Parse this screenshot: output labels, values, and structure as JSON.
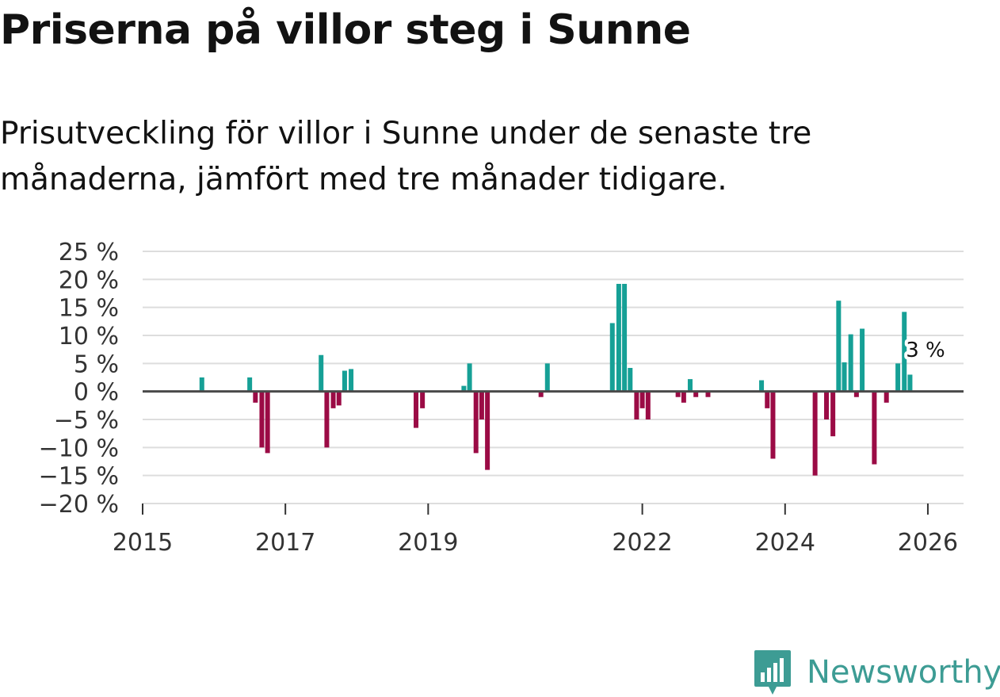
{
  "title": "Priserna på villor steg i Sunne",
  "subtitle": "Prisutveckling för villor i Sunne under de senaste tre månaderna, jämfört med tre månader tidigare.",
  "branding": {
    "name": "Newsworthy",
    "icon": "newsworthy-logo-icon",
    "color": "#3d9c94"
  },
  "colors": {
    "positive": "#16a096",
    "negative": "#9b0b45",
    "grid": "#dddddd",
    "zero_line": "#4a4a4a"
  },
  "chart_data": {
    "type": "bar",
    "title": "Priserna på villor steg i Sunne",
    "subtitle": "Prisutveckling för villor i Sunne under de senaste tre månaderna, jämfört med tre månader tidigare.",
    "xlabel": "",
    "ylabel": "",
    "ylim": [
      -20,
      25
    ],
    "xlim": [
      2015.0,
      2026.5
    ],
    "y_ticks": [
      -20,
      -15,
      -10,
      -5,
      0,
      5,
      10,
      15,
      20,
      25
    ],
    "y_tick_labels": [
      "−20 %",
      "−15 %",
      "−10 %",
      "−5 %",
      "0 %",
      "5 %",
      "10 %",
      "15 %",
      "20 %",
      "25 %"
    ],
    "x_ticks": [
      2015,
      2017,
      2019,
      2022,
      2024,
      2026
    ],
    "x_tick_labels": [
      "2015",
      "2017",
      "2019",
      "2022",
      "2024",
      "2026"
    ],
    "grid": true,
    "highlight_label": "3 %",
    "x": [
      2015.83,
      2016.5,
      2016.58,
      2016.67,
      2016.75,
      2017.5,
      2017.58,
      2017.67,
      2017.75,
      2017.83,
      2017.92,
      2018.83,
      2018.92,
      2019.5,
      2019.58,
      2019.67,
      2019.75,
      2019.83,
      2020.58,
      2020.67,
      2021.58,
      2021.67,
      2021.75,
      2021.83,
      2021.92,
      2022.0,
      2022.08,
      2022.5,
      2022.58,
      2022.67,
      2022.75,
      2022.92,
      2023.67,
      2023.75,
      2023.83,
      2024.42,
      2024.58,
      2024.67,
      2024.75,
      2024.83,
      2024.92,
      2025.0,
      2025.08,
      2025.25,
      2025.42,
      2025.58,
      2025.67,
      2025.75,
      2025.83,
      2025.92
    ],
    "values": [
      2.5,
      2.5,
      -2,
      -10,
      -11,
      6.5,
      -10,
      -3,
      -2.5,
      3.7,
      4,
      -6.5,
      -3,
      1,
      5,
      -11,
      -5,
      -14,
      -1,
      5,
      12.2,
      19.2,
      19.2,
      4.2,
      -5,
      -3,
      -5,
      -1,
      -2,
      2.2,
      -1,
      -1,
      2,
      -3,
      -12,
      -15,
      -5,
      -8,
      16.2,
      5.2,
      10.2,
      -1,
      11.2,
      -13,
      -2,
      5,
      14.2,
      3,
      0,
      0
    ]
  }
}
